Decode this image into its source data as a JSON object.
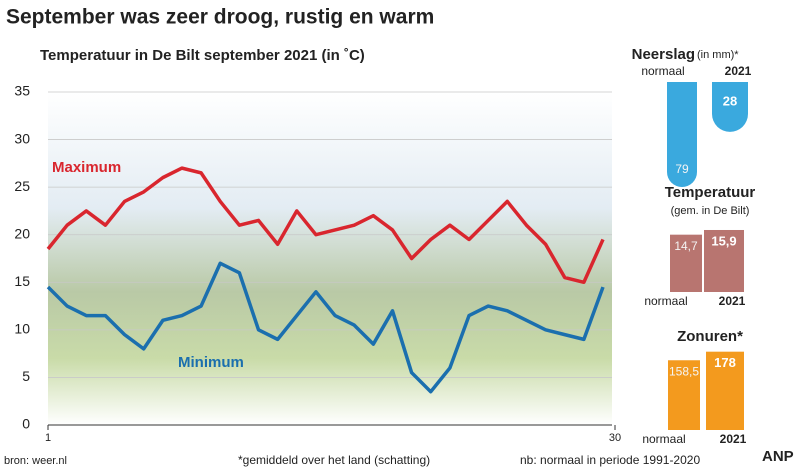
{
  "header": {
    "title": "September was zeer droog, rustig en warm"
  },
  "chart_data": [
    {
      "type": "line",
      "title": "Temperatuur in De Bilt september 2021 (in ˚C)",
      "x": [
        1,
        2,
        3,
        4,
        5,
        6,
        7,
        8,
        9,
        10,
        11,
        12,
        13,
        14,
        15,
        16,
        17,
        18,
        19,
        20,
        21,
        22,
        23,
        24,
        25,
        26,
        27,
        28,
        29,
        30
      ],
      "series": [
        {
          "name": "Maximum",
          "color": "#d9262e",
          "values": [
            18.5,
            21,
            22.5,
            21,
            23.5,
            24.5,
            26,
            27,
            26.5,
            23.5,
            21,
            21.5,
            19,
            22.5,
            20,
            20.5,
            21,
            22,
            20.5,
            17.5,
            19.5,
            21,
            19.5,
            21.5,
            23.5,
            21,
            19,
            15.5,
            15,
            19.5
          ]
        },
        {
          "name": "Minimum",
          "color": "#1b6fae",
          "values": [
            14.5,
            12.5,
            11.5,
            11.5,
            9.5,
            8,
            11,
            11.5,
            12.5,
            17,
            16,
            10,
            9,
            11.5,
            14,
            11.5,
            10.5,
            8.5,
            12,
            5.5,
            3.5,
            6,
            11.5,
            12.5,
            12,
            11,
            10,
            9.5,
            9,
            14.5
          ]
        }
      ],
      "xlim": [
        1,
        30
      ],
      "xticks": [
        1,
        30
      ],
      "ylim": [
        0,
        35
      ],
      "yticks": [
        0,
        5,
        10,
        15,
        20,
        25,
        30,
        35
      ],
      "grid": true
    },
    {
      "type": "bar",
      "title": "Neerslag",
      "unit": "(in mm)*",
      "categories": [
        "normaal",
        "2021"
      ],
      "values": [
        79,
        28
      ],
      "color": "#3aa9de"
    },
    {
      "type": "bar",
      "title": "Temperatuur",
      "subtitle": "(gem. in De Bilt)",
      "categories": [
        "normaal",
        "2021"
      ],
      "values": [
        14.7,
        15.9
      ],
      "value_labels": [
        "14,7",
        "15,9"
      ],
      "color": "#b87570"
    },
    {
      "type": "bar",
      "title": "Zonuren*",
      "categories": [
        "normaal",
        "2021"
      ],
      "values": [
        158.5,
        178
      ],
      "value_labels": [
        "158,5",
        "178"
      ],
      "color": "#f39a1e"
    }
  ],
  "footer": {
    "source": "bron: weer.nl",
    "note": "*gemiddeld over het land (schatting)",
    "period": "nb: normaal in periode 1991-2020",
    "agency": "ANP"
  }
}
